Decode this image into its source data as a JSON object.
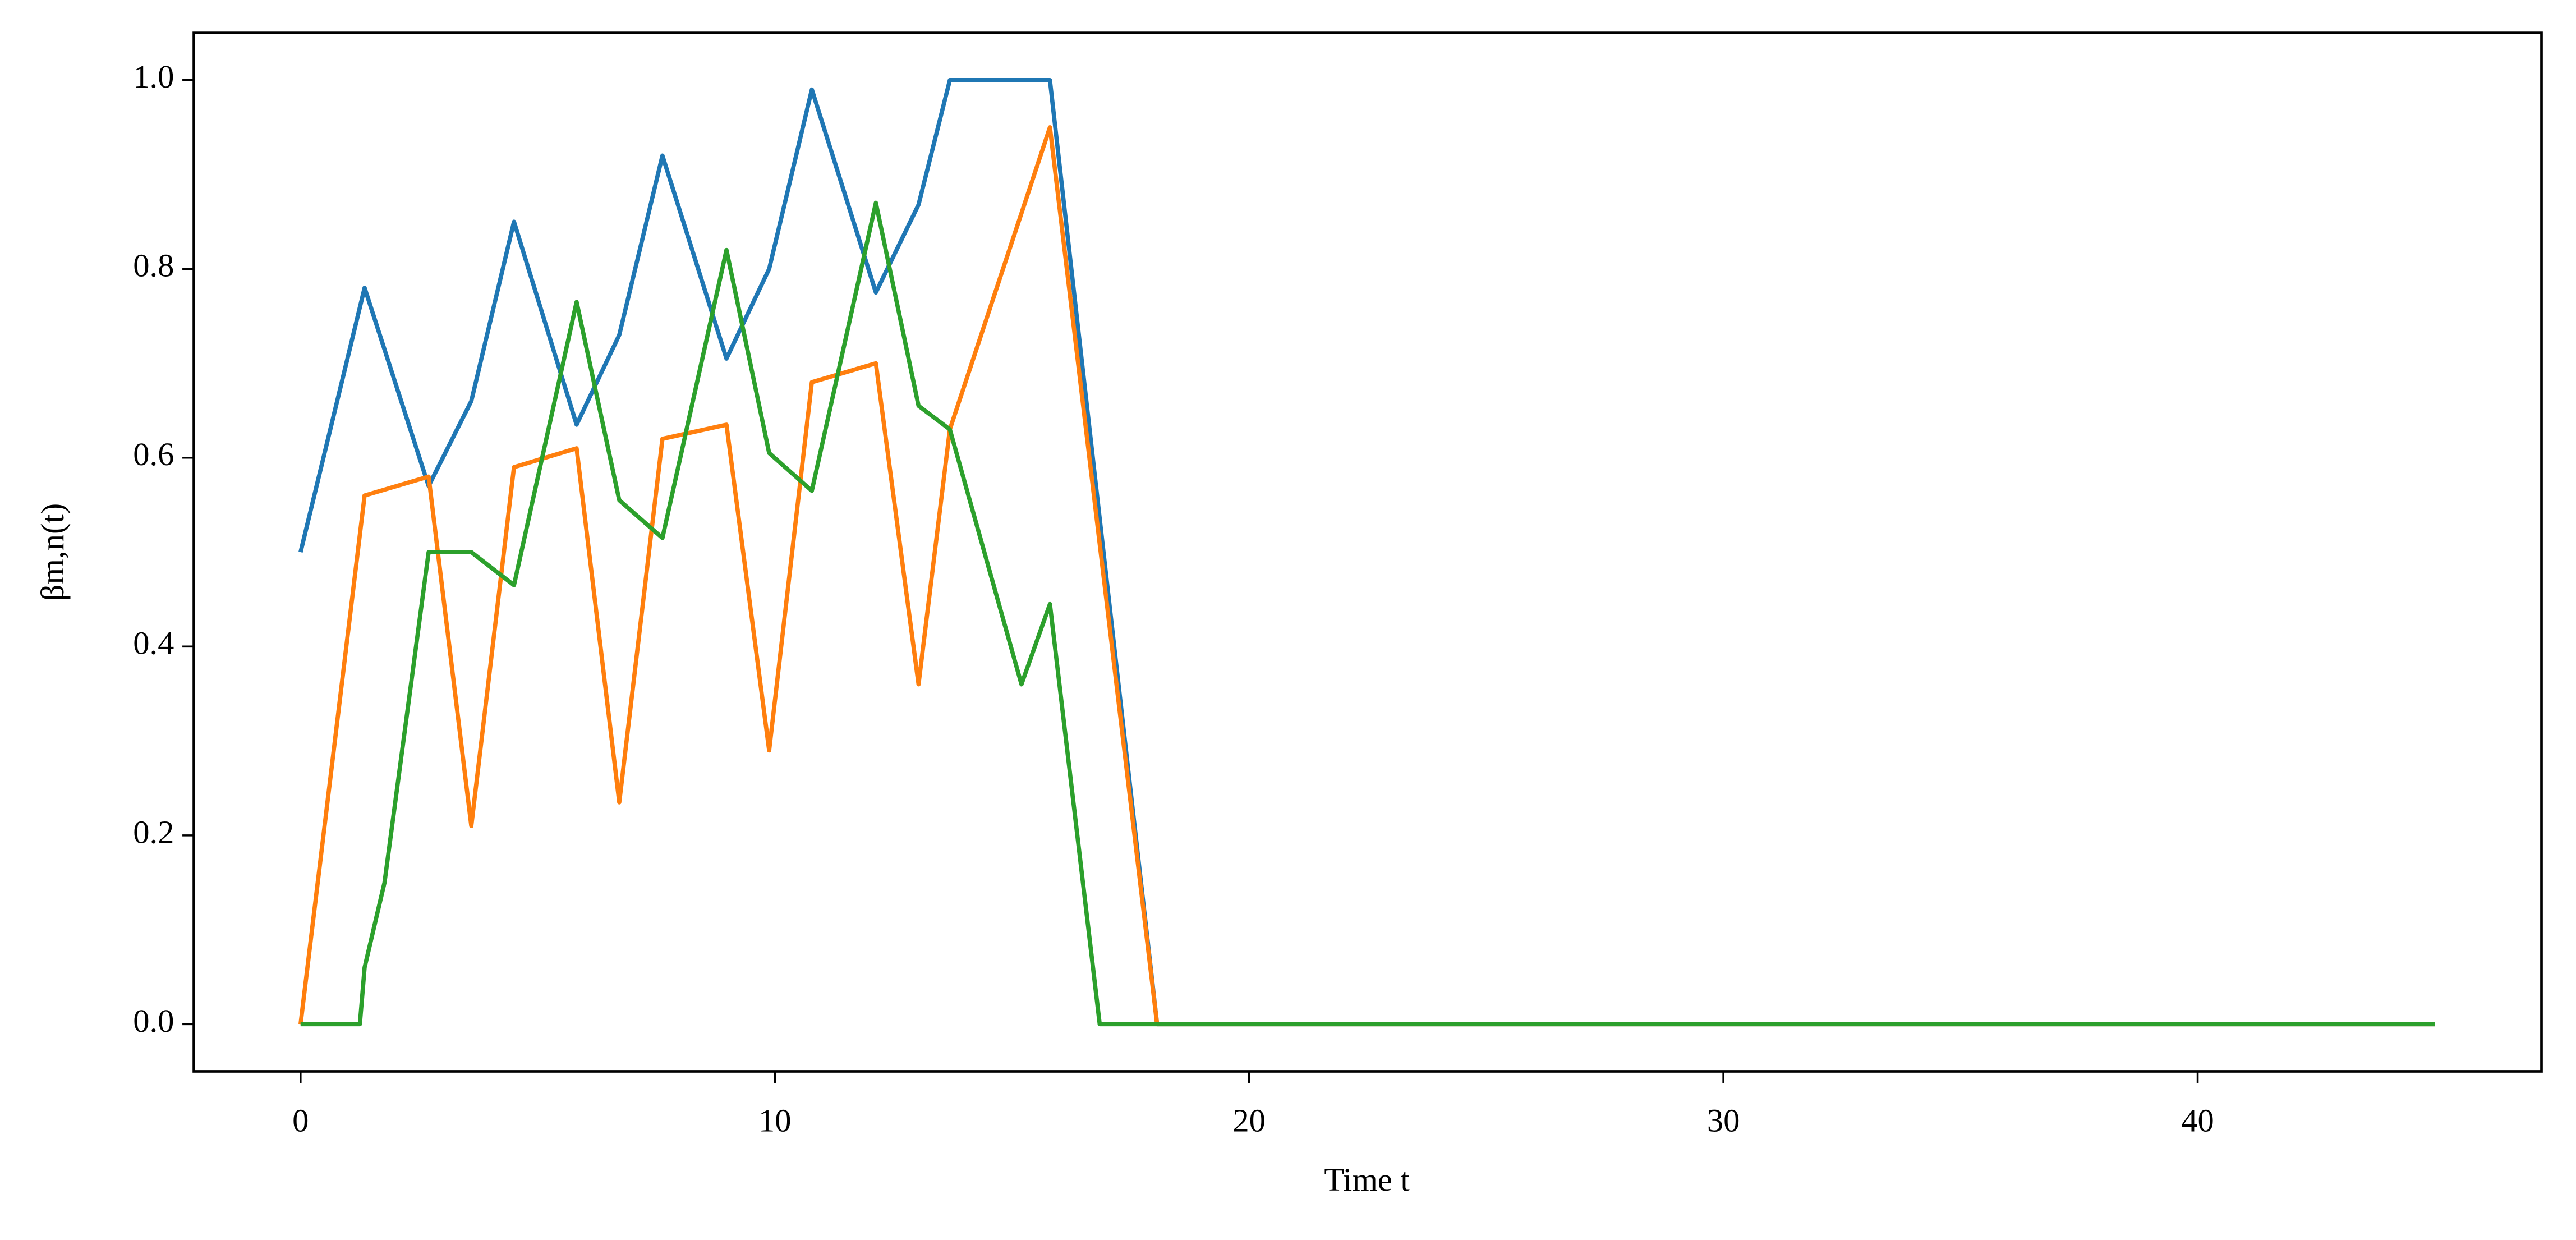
{
  "chart_data": {
    "type": "line",
    "xlabel": "Time t",
    "ylabel": "βm,n(t)",
    "xlim": [
      -2.25,
      47.25
    ],
    "ylim": [
      -0.05,
      1.05
    ],
    "xticks": [
      0,
      10,
      20,
      30,
      40
    ],
    "yticks": [
      {
        "value": 0,
        "label": "0.0"
      },
      {
        "value": 0.2,
        "label": "0.2"
      },
      {
        "value": 0.4,
        "label": "0.4"
      },
      {
        "value": 0.6,
        "label": "0.6"
      },
      {
        "value": 0.8,
        "label": "0.8"
      },
      {
        "value": 1,
        "label": "1.0"
      }
    ],
    "grid": false,
    "series": [
      {
        "color": "#1f77b4",
        "x": [
          0,
          1.35,
          2.7,
          3.6,
          4.5,
          5.82,
          6.72,
          7.63,
          8.98,
          9.88,
          10.78,
          12.13,
          13.03,
          13.69,
          15.8,
          18.06,
          45
        ],
        "values": [
          0.5,
          0.78,
          0.57,
          0.66,
          0.85,
          0.635,
          0.73,
          0.92,
          0.705,
          0.8,
          0.99,
          0.775,
          0.868,
          1,
          1,
          0,
          0
        ]
      },
      {
        "color": "#ff7f0e",
        "x": [
          0,
          1.35,
          2.7,
          3.6,
          4.5,
          5.82,
          6.72,
          7.63,
          8.98,
          9.88,
          10.78,
          12.13,
          13.03,
          13.69,
          15.8,
          18.06,
          45
        ],
        "values": [
          0,
          0.56,
          0.58,
          0.21,
          0.59,
          0.61,
          0.235,
          0.62,
          0.635,
          0.29,
          0.68,
          0.7,
          0.36,
          0.63,
          0.95,
          0,
          0
        ]
      },
      {
        "color": "#2ca02c",
        "x": [
          0,
          1.25,
          1.35,
          1.77,
          2.7,
          3.6,
          4.5,
          5.82,
          6.72,
          7.63,
          8.98,
          9.88,
          10.78,
          12.13,
          13.03,
          13.69,
          15.2,
          15.8,
          16.85,
          45
        ],
        "values": [
          0,
          0,
          0.06,
          0.15,
          0.5,
          0.5,
          0.465,
          0.765,
          0.555,
          0.515,
          0.82,
          0.605,
          0.565,
          0.87,
          0.655,
          0.63,
          0.36,
          0.445,
          0,
          0
        ]
      }
    ]
  }
}
